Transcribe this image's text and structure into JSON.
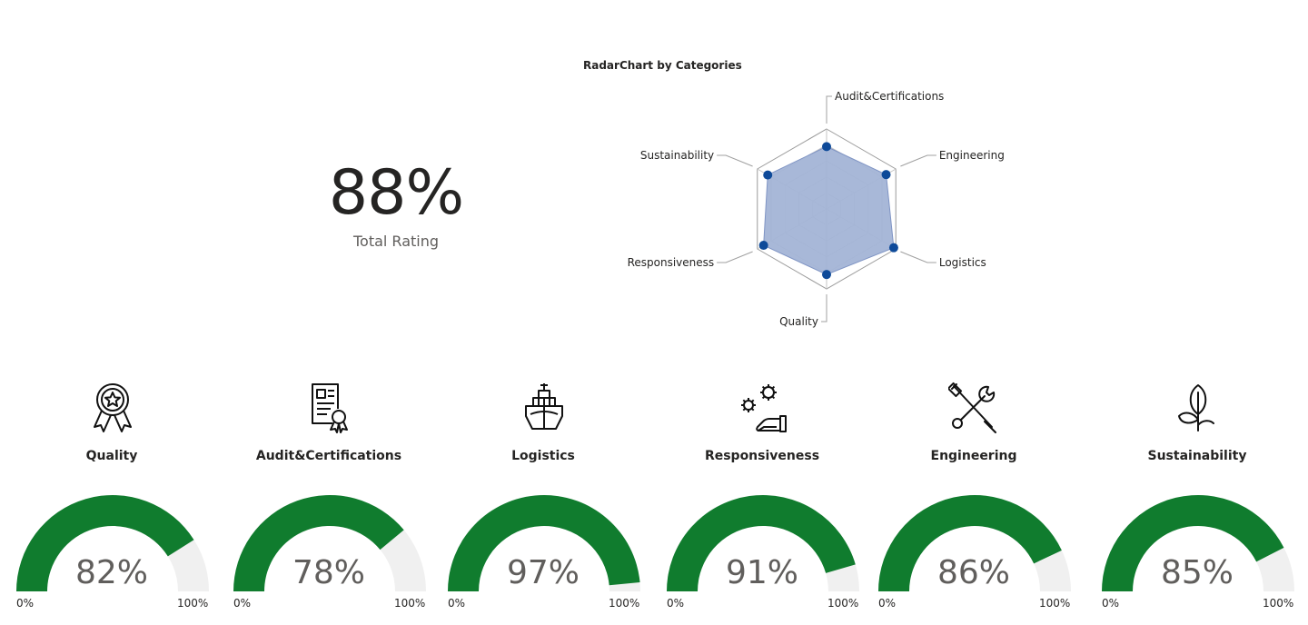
{
  "total": {
    "value": "88%",
    "label": "Total Rating"
  },
  "chart_data": [
    {
      "type": "radar",
      "title": "RadarChart by Categories",
      "categories": [
        "Audit&Certifications",
        "Engineering",
        "Logistics",
        "Quality",
        "Responsiveness",
        "Sustainability"
      ],
      "series": [
        {
          "values": [
            78,
            86,
            97,
            82,
            91,
            85
          ]
        }
      ],
      "rlim": [
        0,
        100
      ],
      "fill_color": "#a3b4d6",
      "marker_color": "#0e4a99"
    },
    {
      "type": "gauge",
      "categories": [
        "Quality",
        "Audit&Certifications",
        "Logistics",
        "Responsiveness",
        "Engineering",
        "Sustainability"
      ],
      "values": [
        82,
        78,
        97,
        91,
        86,
        85
      ],
      "labels": [
        "82%",
        "78%",
        "97%",
        "91%",
        "86%",
        "85%"
      ],
      "min_label": "0%",
      "max_label": "100%",
      "range": [
        0,
        100
      ],
      "fill_color": "#107c2e",
      "track_color": "#f0f0f0"
    }
  ],
  "categories": [
    {
      "name": "Quality",
      "icon": "award-ribbon-icon"
    },
    {
      "name": "Audit&Certifications",
      "icon": "certificate-icon"
    },
    {
      "name": "Logistics",
      "icon": "cargo-ship-icon"
    },
    {
      "name": "Responsiveness",
      "icon": "gears-hand-icon"
    },
    {
      "name": "Engineering",
      "icon": "tools-icon"
    },
    {
      "name": "Sustainability",
      "icon": "leaf-icon"
    }
  ]
}
